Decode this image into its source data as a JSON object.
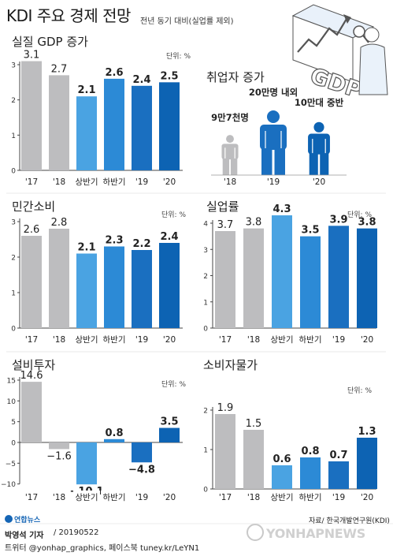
{
  "header": {
    "title": "KDI 주요 경제 전망",
    "subtitle": "전년 동기 대비(실업률 제외)",
    "illustration_text": "GDP"
  },
  "colors": {
    "past": "#bdbdbf",
    "half1": "#4aa3e2",
    "half2": "#2c8ad6",
    "y19": "#1a6fc0",
    "y20": "#0d63b3",
    "axis": "#444444"
  },
  "chart_data": [
    {
      "id": "gdp",
      "type": "bar",
      "title": "실질 GDP 증가",
      "unit": "단위: %",
      "categories": [
        "'17",
        "'18",
        "상반기",
        "하반기",
        "'19",
        "'20"
      ],
      "values": [
        3.1,
        2.7,
        2.1,
        2.6,
        2.4,
        2.5
      ],
      "value_labels": [
        "3.1",
        "2.7",
        "2.1",
        "2.6",
        "2.4",
        "2.5"
      ],
      "ylim": [
        0,
        3
      ],
      "yticks": [
        0,
        1,
        2,
        3
      ],
      "grid": false
    },
    {
      "id": "employment",
      "type": "pictogram",
      "title": "취업자 증가",
      "categories": [
        "'18",
        "'19",
        "'20"
      ],
      "labels": [
        "9만7천명",
        "20만명 내외",
        "10만대 중반"
      ],
      "values": [
        97000,
        200000,
        150000
      ]
    },
    {
      "id": "consumption",
      "type": "bar",
      "title": "민간소비",
      "unit": "단위: %",
      "categories": [
        "'17",
        "'18",
        "상반기",
        "하반기",
        "'19",
        "'20"
      ],
      "values": [
        2.6,
        2.8,
        2.1,
        2.3,
        2.2,
        2.4
      ],
      "value_labels": [
        "2.6",
        "2.8",
        "2.1",
        "2.3",
        "2.2",
        "2.4"
      ],
      "ylim": [
        0,
        3
      ],
      "yticks": [
        0,
        1,
        2,
        3
      ],
      "grid": false
    },
    {
      "id": "unemployment",
      "type": "bar",
      "title": "실업률",
      "unit": "단위: %",
      "categories": [
        "'17",
        "'18",
        "상반기",
        "하반기",
        "'19",
        "'20"
      ],
      "values": [
        3.7,
        3.8,
        4.3,
        3.5,
        3.9,
        3.8
      ],
      "value_labels": [
        "3.7",
        "3.8",
        "4.3",
        "3.5",
        "3.9",
        "3.8"
      ],
      "ylim": [
        0,
        4
      ],
      "yticks": [
        0,
        1,
        2,
        3,
        4
      ],
      "grid": false
    },
    {
      "id": "investment",
      "type": "bar",
      "title": "설비투자",
      "unit": "단위: %",
      "categories": [
        "'17",
        "'18",
        "상반기",
        "하반기",
        "'19",
        "'20"
      ],
      "values": [
        14.6,
        -1.6,
        -10.1,
        0.8,
        -4.8,
        3.5
      ],
      "value_labels": [
        "14.6",
        "−1.6",
        "−10.1",
        "0.8",
        "−4.8",
        "3.5"
      ],
      "ylim": [
        -10,
        15
      ],
      "yticks": [
        -10,
        -5,
        0,
        5,
        10,
        15
      ],
      "grid": false
    },
    {
      "id": "prices",
      "type": "bar",
      "title": "소비자물가",
      "unit": "단위: %",
      "categories": [
        "'17",
        "'18",
        "상반기",
        "하반기",
        "'19",
        "'20"
      ],
      "values": [
        1.9,
        1.5,
        0.6,
        0.8,
        0.7,
        1.3
      ],
      "value_labels": [
        "1.9",
        "1.5",
        "0.6",
        "0.8",
        "0.7",
        "1.3"
      ],
      "ylim": [
        0,
        2
      ],
      "yticks": [
        0,
        1,
        2
      ],
      "grid": false
    }
  ],
  "footer": {
    "logo_label": "연합뉴스",
    "source": "자료/ 한국개발연구원(KDI)",
    "author": "박영석 기자",
    "date": "/ 20190522",
    "social": "트위터 @yonhap_graphics, 페이스북 tuney.kr/LeYN1",
    "watermark": "YONHAPNEWS"
  }
}
